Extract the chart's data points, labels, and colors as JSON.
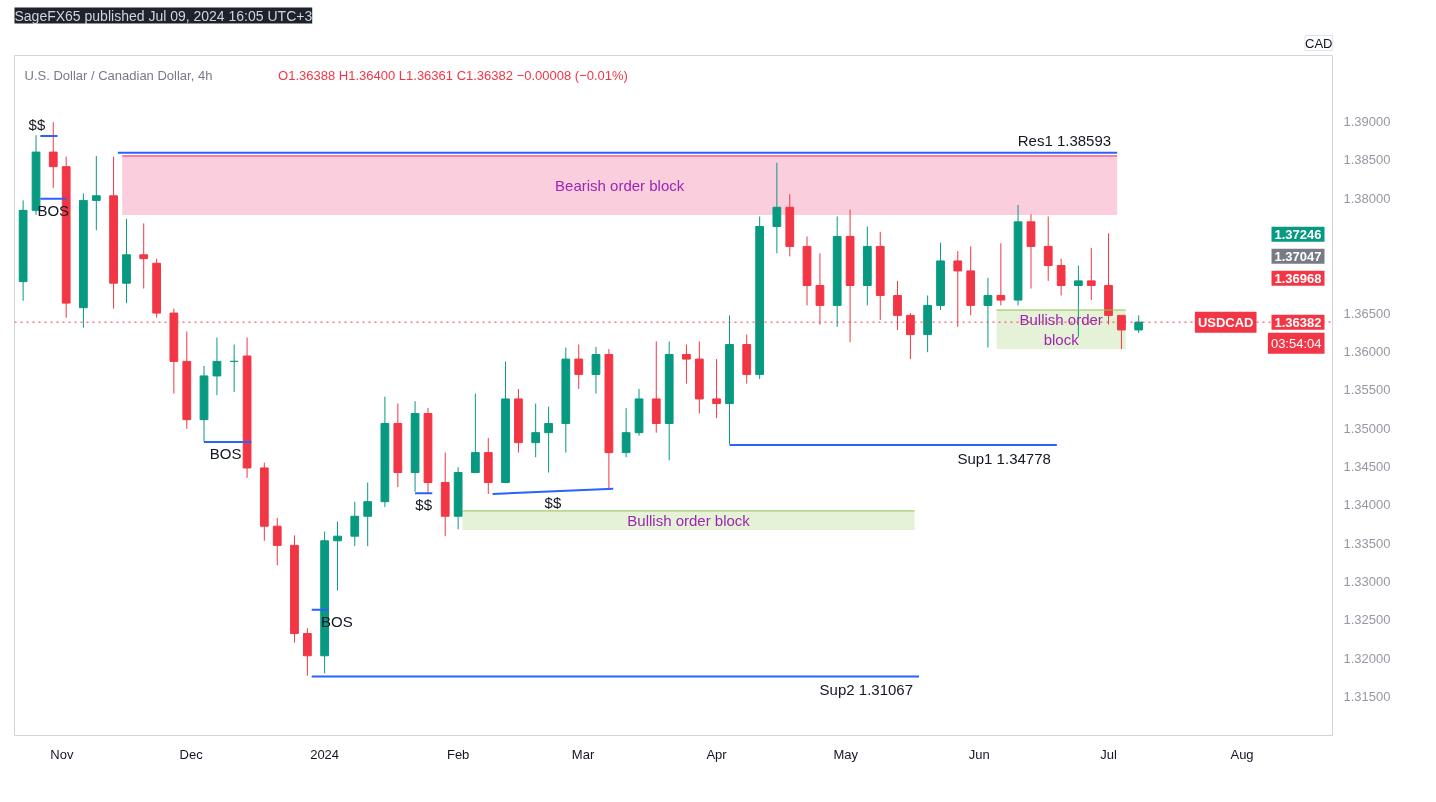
{
  "chart_data": {
    "type": "candlestick",
    "title": "U.S. Dollar / Canadian Dollar, 4h",
    "subtitle": "O1.36388 H1.36400 L1.36361 C1.36382 −0.00008 (−0.01%)",
    "ylabel": "CAD",
    "x": [
      "2023-10-23",
      "2023-10-26",
      "2023-10-30",
      "2023-11-02",
      "2023-11-06",
      "2023-11-09",
      "2023-11-13",
      "2023-11-16",
      "2023-11-20",
      "2023-11-23",
      "2023-11-27",
      "2023-11-30",
      "2023-12-04",
      "2023-12-07",
      "2023-12-11",
      "2023-12-14",
      "2023-12-18",
      "2023-12-21",
      "2023-12-25",
      "2023-12-28",
      "2024-01-01",
      "2024-01-04",
      "2024-01-08",
      "2024-01-11",
      "2024-01-15",
      "2024-01-18",
      "2024-01-22",
      "2024-01-25",
      "2024-01-29",
      "2024-02-01",
      "2024-02-05",
      "2024-02-08",
      "2024-02-12",
      "2024-02-15",
      "2024-02-19",
      "2024-02-22",
      "2024-02-26",
      "2024-02-29",
      "2024-03-04",
      "2024-03-07",
      "2024-03-11",
      "2024-03-14",
      "2024-03-18",
      "2024-03-21",
      "2024-03-25",
      "2024-03-28",
      "2024-04-01",
      "2024-04-04",
      "2024-04-08",
      "2024-04-11",
      "2024-04-15",
      "2024-04-18",
      "2024-04-22",
      "2024-04-25",
      "2024-04-29",
      "2024-05-02",
      "2024-05-06",
      "2024-05-09",
      "2024-05-13",
      "2024-05-16",
      "2024-05-20",
      "2024-05-23",
      "2024-05-27",
      "2024-05-30",
      "2024-06-03",
      "2024-06-06",
      "2024-06-10",
      "2024-06-13",
      "2024-06-17",
      "2024-06-20",
      "2024-06-24",
      "2024-06-27",
      "2024-07-01",
      "2024-07-04",
      "2024-07-08"
    ],
    "ohlc": [
      [
        1.3691,
        1.3797,
        1.3666,
        1.3784
      ],
      [
        1.3784,
        1.3882,
        1.3778,
        1.386
      ],
      [
        1.386,
        1.3899,
        1.3813,
        1.3841
      ],
      [
        1.3841,
        1.3854,
        1.3644,
        1.3663
      ],
      [
        1.3657,
        1.3806,
        1.3631,
        1.3797
      ],
      [
        1.3797,
        1.3855,
        1.3758,
        1.3803
      ],
      [
        1.3803,
        1.3854,
        1.3656,
        1.3689
      ],
      [
        1.3689,
        1.3773,
        1.3663,
        1.3726
      ],
      [
        1.3726,
        1.3767,
        1.3682,
        1.3721
      ],
      [
        1.3715,
        1.3721,
        1.3644,
        1.365
      ],
      [
        1.365,
        1.3656,
        1.3545,
        1.3587
      ],
      [
        1.3587,
        1.3626,
        1.3499,
        1.3511
      ],
      [
        1.3511,
        1.3581,
        1.3482,
        1.3568
      ],
      [
        1.3568,
        1.3618,
        1.3543,
        1.3587
      ],
      [
        1.3587,
        1.3609,
        1.3547,
        1.3587
      ],
      [
        1.3594,
        1.3618,
        1.3435,
        1.3448
      ],
      [
        1.3448,
        1.3455,
        1.3353,
        1.3372
      ],
      [
        1.3372,
        1.3383,
        1.3321,
        1.3347
      ],
      [
        1.3347,
        1.336,
        1.322,
        1.3232
      ],
      [
        1.3232,
        1.3239,
        1.3177,
        1.3203
      ],
      [
        1.3203,
        1.3365,
        1.318,
        1.3353
      ],
      [
        1.3353,
        1.3378,
        1.3288,
        1.3359
      ],
      [
        1.3359,
        1.3404,
        1.3346,
        1.3385
      ],
      [
        1.3385,
        1.3429,
        1.3346,
        1.3404
      ],
      [
        1.3404,
        1.3541,
        1.3397,
        1.3506
      ],
      [
        1.3506,
        1.3532,
        1.3423,
        1.3442
      ],
      [
        1.3442,
        1.3535,
        1.3417,
        1.3519
      ],
      [
        1.3519,
        1.3526,
        1.3414,
        1.3429
      ],
      [
        1.3429,
        1.3468,
        1.3359,
        1.3385
      ],
      [
        1.3385,
        1.3449,
        1.3368,
        1.3442
      ],
      [
        1.3442,
        1.3545,
        1.3442,
        1.3468
      ],
      [
        1.3468,
        1.3487,
        1.3414,
        1.3429
      ],
      [
        1.3429,
        1.3587,
        1.3429,
        1.3538
      ],
      [
        1.3538,
        1.3551,
        1.3468,
        1.3481
      ],
      [
        1.3481,
        1.3532,
        1.3462,
        1.3494
      ],
      [
        1.3494,
        1.3528,
        1.3442,
        1.3506
      ],
      [
        1.3506,
        1.3605,
        1.3468,
        1.359
      ],
      [
        1.359,
        1.3609,
        1.3551,
        1.357
      ],
      [
        1.357,
        1.3606,
        1.3545,
        1.3596
      ],
      [
        1.3596,
        1.3603,
        1.342,
        1.3468
      ],
      [
        1.3468,
        1.3526,
        1.3462,
        1.3494
      ],
      [
        1.3494,
        1.3551,
        1.349,
        1.3538
      ],
      [
        1.3538,
        1.3613,
        1.3494,
        1.3506
      ],
      [
        1.3506,
        1.3613,
        1.3458,
        1.3596
      ],
      [
        1.3596,
        1.3609,
        1.3558,
        1.359
      ],
      [
        1.359,
        1.3613,
        1.3519,
        1.3538
      ],
      [
        1.3538,
        1.359,
        1.3513,
        1.3532
      ],
      [
        1.3532,
        1.3647,
        1.3479,
        1.3609
      ],
      [
        1.3609,
        1.3622,
        1.3558,
        1.357
      ],
      [
        1.357,
        1.3776,
        1.3564,
        1.3763
      ],
      [
        1.3763,
        1.3846,
        1.3728,
        1.3788
      ],
      [
        1.3788,
        1.3805,
        1.3724,
        1.3737
      ],
      [
        1.3737,
        1.375,
        1.366,
        1.3686
      ],
      [
        1.3686,
        1.3728,
        1.3635,
        1.366
      ],
      [
        1.366,
        1.3776,
        1.3632,
        1.375
      ],
      [
        1.375,
        1.3785,
        1.3612,
        1.3686
      ],
      [
        1.3686,
        1.3763,
        1.366,
        1.3737
      ],
      [
        1.3737,
        1.3756,
        1.3641,
        1.3673
      ],
      [
        1.3673,
        1.3692,
        1.3628,
        1.3647
      ],
      [
        1.3647,
        1.365,
        1.359,
        1.3622
      ],
      [
        1.3622,
        1.3673,
        1.3599,
        1.366
      ],
      [
        1.366,
        1.3742,
        1.3654,
        1.3718
      ],
      [
        1.3718,
        1.3731,
        1.3632,
        1.3705
      ],
      [
        1.3705,
        1.3737,
        1.3647,
        1.366
      ],
      [
        1.366,
        1.3696,
        1.3605,
        1.3673
      ],
      [
        1.3673,
        1.3741,
        1.366,
        1.3667
      ],
      [
        1.3667,
        1.3791,
        1.366,
        1.3769
      ],
      [
        1.3769,
        1.3779,
        1.3682,
        1.3737
      ],
      [
        1.3737,
        1.3776,
        1.3692,
        1.3712
      ],
      [
        1.3712,
        1.3721,
        1.3673,
        1.3686
      ],
      [
        1.3686,
        1.3712,
        1.3619,
        1.3692
      ],
      [
        1.3692,
        1.3735,
        1.3667,
        1.3686
      ],
      [
        1.3686,
        1.3754,
        1.3635,
        1.3647
      ],
      [
        1.3647,
        1.3647,
        1.3603,
        1.3628
      ],
      [
        1.3628,
        1.3647,
        1.3624,
        1.36382
      ]
    ],
    "series": [
      {
        "type": "line",
        "x": [
          "2023-10-27",
          "2023-10-31"
        ],
        "values": [
          1.3881,
          1.3881
        ],
        "color": "#2962ff"
      },
      {
        "type": "line",
        "x": [
          "2023-10-27",
          "2023-11-02"
        ],
        "values": [
          1.3799,
          1.3799
        ],
        "color": "#2962ff"
      },
      {
        "type": "line",
        "x": [
          "2023-12-04",
          "2023-12-15"
        ],
        "values": [
          1.3482,
          1.3482
        ],
        "color": "#2962ff"
      },
      {
        "type": "line",
        "x": [
          "2023-12-29",
          "2024-01-02"
        ],
        "values": [
          1.3263,
          1.3263
        ],
        "color": "#2962ff"
      },
      {
        "type": "line",
        "x": [
          "2024-01-22",
          "2024-01-26"
        ],
        "values": [
          1.3415,
          1.3415
        ],
        "color": "#2962ff"
      },
      {
        "type": "line",
        "x": [
          "2024-02-09",
          "2024-03-08"
        ],
        "values": [
          1.3414,
          1.3421
        ],
        "color": "#2962ff"
      },
      {
        "type": "line",
        "name": "Res1 1.38593",
        "x": [
          "2023-11-14",
          "2024-07-03"
        ],
        "values": [
          1.38593,
          1.38593
        ],
        "color": "#2962ff"
      },
      {
        "type": "line",
        "name": "Sup1 1.34778",
        "x": [
          "2024-04-04",
          "2024-06-19"
        ],
        "values": [
          1.34778,
          1.34778
        ],
        "color": "#2962ff"
      },
      {
        "type": "line",
        "name": "Sup2 1.31067",
        "x": [
          "2023-12-29",
          "2024-05-18"
        ],
        "values": [
          1.3176,
          1.3176
        ],
        "color": "#2962ff"
      },
      {
        "type": "line",
        "name": "Bearish order block",
        "x": [
          "2023-11-15",
          "2024-07-03"
        ],
        "values": [
          1.3855,
          1.3855
        ],
        "lower": [
          1.3778,
          1.3778
        ],
        "upper": [
          1.3855,
          1.3855
        ],
        "color": "#e91e63"
      },
      {
        "type": "line",
        "name": "Bullish order block",
        "x": [
          "2024-02-02",
          "2024-05-17"
        ],
        "values": [
          1.3392,
          1.3392
        ],
        "lower": [
          1.3367,
          1.3367
        ],
        "upper": [
          1.3392,
          1.3392
        ],
        "color": "#8bc34a"
      },
      {
        "type": "line",
        "name": "Bullish order block",
        "x": [
          "2024-06-05",
          "2024-07-05"
        ],
        "values": [
          1.3654,
          1.3654
        ],
        "lower": [
          1.3603,
          1.3603
        ],
        "upper": [
          1.3654,
          1.3654
        ],
        "color": "#8bc34a"
      }
    ],
    "ref_lines": [
      {
        "axis": "y",
        "value": 1.36382,
        "label": "USDCAD",
        "color": "#f23645",
        "line_style": "dotted"
      }
    ],
    "annotations": [
      "SageFX65 published Jul 09, 2024 16:05 UTC+3",
      "1.37246",
      "1.37047",
      "1.36968",
      "03:54:04",
      {
        "text": "$$",
        "x": "2023-10-29",
        "y": 1.3881
      },
      {
        "text": "BOS",
        "x": "2023-10-30",
        "y": 1.3799
      },
      {
        "text": "BOS",
        "x": "2023-12-09",
        "y": 1.3482
      },
      {
        "text": "BOS",
        "x": "2023-12-31",
        "y": 1.3263
      },
      {
        "text": "$$",
        "x": "2024-01-24",
        "y": 1.3415
      },
      {
        "text": "$$",
        "x": "2024-02-23",
        "y": 1.3418
      },
      {
        "text": "1.36382",
        "y": 1.36382
      }
    ],
    "xlim": [
      "2023-10-21",
      "2024-08-22"
    ],
    "xticks": [
      {
        "value": "2023-11-01",
        "label": "Nov"
      },
      {
        "value": "2023-12-01",
        "label": "Dec"
      },
      {
        "value": "2024-01-01",
        "label": "2024"
      },
      {
        "value": "2024-02-01",
        "label": "Feb"
      },
      {
        "value": "2024-03-01",
        "label": "Mar"
      },
      {
        "value": "2024-04-01",
        "label": "Apr"
      },
      {
        "value": "2024-05-01",
        "label": "May"
      },
      {
        "value": "2024-06-01",
        "label": "Jun"
      },
      {
        "value": "2024-07-01",
        "label": "Jul"
      },
      {
        "value": "2024-08-01",
        "label": "Aug"
      }
    ],
    "ylim": [
      1.3099,
      1.3986
    ],
    "yticks": [
      {
        "value": 1.315,
        "label": "1.31500"
      },
      {
        "value": 1.32,
        "label": "1.32000"
      },
      {
        "value": 1.325,
        "label": "1.32500"
      },
      {
        "value": 1.33,
        "label": "1.33000"
      },
      {
        "value": 1.335,
        "label": "1.33500"
      },
      {
        "value": 1.34,
        "label": "1.34000"
      },
      {
        "value": 1.345,
        "label": "1.34500"
      },
      {
        "value": 1.35,
        "label": "1.35000"
      },
      {
        "value": 1.355,
        "label": "1.35500"
      },
      {
        "value": 1.36,
        "label": "1.36000"
      },
      {
        "value": 1.365,
        "label": "1.36500"
      },
      {
        "value": 1.38,
        "label": "1.38000"
      },
      {
        "value": 1.385,
        "label": "1.38500"
      },
      {
        "value": 1.39,
        "label": "1.39000"
      }
    ]
  }
}
